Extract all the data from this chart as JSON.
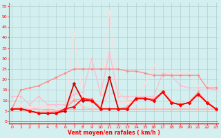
{
  "bg_color": "#d4efef",
  "grid_color": "#b0d0d0",
  "x_label": "Vent moyen/en rafales ( km/h )",
  "x_ticks": [
    0,
    1,
    2,
    3,
    4,
    5,
    6,
    7,
    8,
    9,
    10,
    11,
    12,
    13,
    14,
    15,
    16,
    17,
    18,
    19,
    20,
    21,
    22,
    23
  ],
  "y_ticks": [
    0,
    5,
    10,
    15,
    20,
    25,
    30,
    35,
    40,
    45,
    50,
    55
  ],
  "ylim": [
    -1,
    57
  ],
  "xlim": [
    -0.3,
    23.3
  ],
  "series": [
    {
      "color": "#ffaaaa",
      "linewidth": 0.8,
      "marker": "D",
      "markersize": 1.8,
      "values": [
        6,
        6,
        6,
        6,
        6,
        6,
        6,
        6,
        6,
        6,
        6,
        6,
        6,
        6,
        6,
        6,
        6,
        6,
        6,
        6,
        6,
        6,
        6,
        6
      ]
    },
    {
      "color": "#ffbbbb",
      "linewidth": 0.8,
      "marker": "D",
      "markersize": 1.8,
      "values": [
        6,
        6,
        6,
        6,
        5,
        5,
        6,
        11,
        7,
        6,
        6,
        6,
        6,
        6,
        6,
        6,
        6,
        6,
        6,
        6,
        6,
        6,
        6,
        6
      ]
    },
    {
      "color": "#ffcccc",
      "linewidth": 0.8,
      "marker": "D",
      "markersize": 1.8,
      "values": [
        6,
        7,
        6,
        7,
        7,
        6,
        6,
        14,
        11,
        9,
        7,
        13,
        14,
        10,
        10,
        11,
        10,
        15,
        10,
        9,
        10,
        14,
        10,
        6
      ]
    },
    {
      "color": "#ff9999",
      "linewidth": 0.9,
      "marker": "D",
      "markersize": 2.0,
      "values": [
        6,
        6,
        5,
        4,
        4,
        5,
        6,
        10,
        11,
        11,
        6,
        21,
        6,
        7,
        11,
        11,
        11,
        14,
        9,
        8,
        9,
        14,
        9,
        6
      ]
    },
    {
      "color": "#ff6666",
      "linewidth": 0.9,
      "marker": "D",
      "markersize": 2.0,
      "values": [
        6,
        6,
        5,
        4,
        4,
        4,
        5,
        18,
        10,
        10,
        7,
        21,
        6,
        6,
        11,
        11,
        10,
        14,
        9,
        8,
        9,
        13,
        9,
        6
      ]
    },
    {
      "color": "#ffdddd",
      "linewidth": 0.9,
      "marker": "D",
      "markersize": 1.8,
      "values": [
        9,
        8,
        7,
        7,
        7,
        6,
        5,
        43,
        10,
        9,
        7,
        53,
        9,
        9,
        9,
        18,
        27,
        22,
        24,
        23,
        23,
        17,
        17,
        16
      ]
    },
    {
      "color": "#ffbbcc",
      "linewidth": 0.9,
      "marker": "D",
      "markersize": 1.8,
      "values": [
        12,
        12,
        8,
        12,
        8,
        8,
        8,
        13,
        14,
        30,
        13,
        33,
        12,
        12,
        12,
        12,
        12,
        23,
        22,
        17,
        16,
        16,
        16,
        15
      ]
    },
    {
      "color": "#ff8888",
      "linewidth": 0.9,
      "marker": "D",
      "markersize": 1.8,
      "values": [
        6,
        15,
        16,
        17,
        19,
        21,
        23,
        25,
        25,
        25,
        25,
        25,
        25,
        24,
        24,
        23,
        22,
        22,
        22,
        22,
        22,
        22,
        16,
        16
      ]
    },
    {
      "color": "#cc0000",
      "linewidth": 1.2,
      "marker": "D",
      "markersize": 2.5,
      "values": [
        6,
        6,
        5,
        4,
        4,
        4,
        5,
        18,
        10,
        10,
        6,
        21,
        6,
        6,
        11,
        11,
        10,
        14,
        9,
        8,
        9,
        13,
        9,
        6
      ]
    },
    {
      "color": "#ff0000",
      "linewidth": 1.2,
      "marker": "D",
      "markersize": 2.5,
      "values": [
        6,
        6,
        5,
        4,
        4,
        4,
        6,
        7,
        11,
        10,
        6,
        6,
        6,
        6,
        11,
        11,
        10,
        14,
        9,
        8,
        9,
        13,
        9,
        6
      ]
    }
  ]
}
